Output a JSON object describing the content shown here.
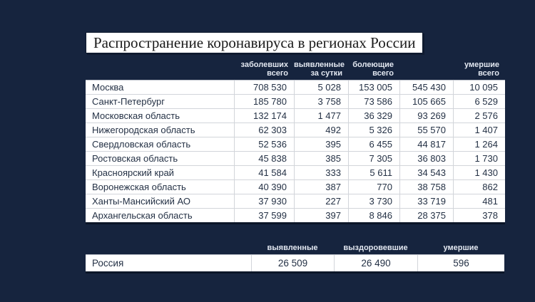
{
  "title": "Распространение коронавируса в регионах России",
  "colors": {
    "background": "#16243e",
    "table_background": "#ffffff",
    "table_text": "#243145",
    "header_text": "#e3e8f1",
    "grid_line": "#d2d5da",
    "shadow": "#0c1628",
    "title_text": "#1a1a1a"
  },
  "chart_data": [
    {
      "type": "table",
      "title": "Распространение коронавируса в регионах России",
      "header_lines": [
        [
          "заболевших",
          "всего"
        ],
        [
          "выявленные",
          "за сутки"
        ],
        [
          "болеющие",
          "всего"
        ],
        [
          "",
          ""
        ],
        [
          "умершие",
          "всего"
        ]
      ],
      "rows": [
        [
          "Москва",
          "708 530",
          "5 028",
          "153 005",
          "545 430",
          "10 095"
        ],
        [
          "Санкт-Петербург",
          "185 780",
          "3 758",
          "73 586",
          "105 665",
          "6 529"
        ],
        [
          "Московская область",
          "132 174",
          "1 477",
          "36 329",
          "93 269",
          "2 576"
        ],
        [
          "Нижегородская область",
          "62 303",
          "492",
          "5 326",
          "55 570",
          "1 407"
        ],
        [
          "Свердловская область",
          "52 536",
          "395",
          "6 455",
          "44 817",
          "1 264"
        ],
        [
          "Ростовская область",
          "45 838",
          "385",
          "7 305",
          "36 803",
          "1 730"
        ],
        [
          "Красноярский край",
          "41 584",
          "333",
          "5 611",
          "34 543",
          "1 430"
        ],
        [
          "Воронежская область",
          "40 390",
          "387",
          "770",
          "38 758",
          "862"
        ],
        [
          "Ханты-Мансийский АО",
          "37 930",
          "227",
          "3 730",
          "33 719",
          "481"
        ],
        [
          "Архангельская область",
          "37 599",
          "397",
          "8 846",
          "28 375",
          "378"
        ]
      ]
    },
    {
      "type": "table",
      "title": "Россия",
      "column_headers": [
        "выявленные",
        "выздоровевшие",
        "умершие"
      ],
      "rows": [
        [
          "Россия",
          "26 509",
          "26 490",
          "596"
        ]
      ]
    }
  ]
}
